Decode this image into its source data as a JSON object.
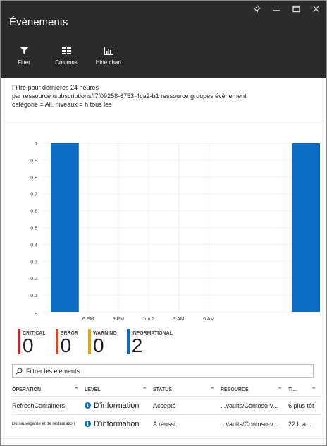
{
  "window": {
    "title": "Événements",
    "controls": [
      "pin-icon",
      "minimize-icon",
      "maximize-icon",
      "close-icon"
    ]
  },
  "toolbar": {
    "filter_label": "Filter",
    "columns_label": "Columns",
    "hide_chart_label": "Hide chart"
  },
  "filter_summary": {
    "line1": "Filtré pour dernières 24 heures",
    "line2": "par ressource /subscriptions/f7f09258-6753-4ca2-b1 ressource groupes événement",
    "line3": "catégorie = All. niveaux = h tous les"
  },
  "chart_data": {
    "type": "bar",
    "ylim": [
      0,
      1
    ],
    "yticks": [
      "0",
      "0.1",
      "0.2",
      "0.3",
      "0.4",
      "0.5",
      "0.6",
      "0.7",
      "0.8",
      "0.9",
      "1"
    ],
    "xticks": [
      "6 PM",
      "9 PM",
      "Jun 2",
      "3 AM",
      "6 AM"
    ],
    "series": [
      {
        "color": "#0b6cc4",
        "values": [
          1,
          0,
          0,
          0,
          0,
          0,
          0,
          0,
          1
        ]
      }
    ],
    "grid": true,
    "legend": "none"
  },
  "legend": [
    {
      "label": "CRITICAL",
      "count": "0",
      "color": "#c4262e"
    },
    {
      "label": "ERROR",
      "count": "0",
      "color": "#d9481e"
    },
    {
      "label": "WARNING",
      "count": "0",
      "color": "#f0a30a"
    },
    {
      "label": "INFORMATIONAL",
      "count": "2",
      "color": "#0b6cc4"
    }
  ],
  "search": {
    "placeholder": "Filtrer les éléments"
  },
  "table": {
    "headers": [
      "OPERATION",
      "LEVEL",
      "STATUS",
      "RESOURCE",
      "TI..."
    ],
    "rows": [
      {
        "operation": "RefreshContainers",
        "level": "D'information",
        "status": "Accepté",
        "resource": "...vaults/Contoso-v...",
        "time": "6 plus tôt"
      },
      {
        "operation": "De sauvegarde et de restauration",
        "level": "D'information",
        "status": "A réussi.",
        "resource": "...vaults/Contoso-v...",
        "time": "22 h a..."
      }
    ]
  }
}
